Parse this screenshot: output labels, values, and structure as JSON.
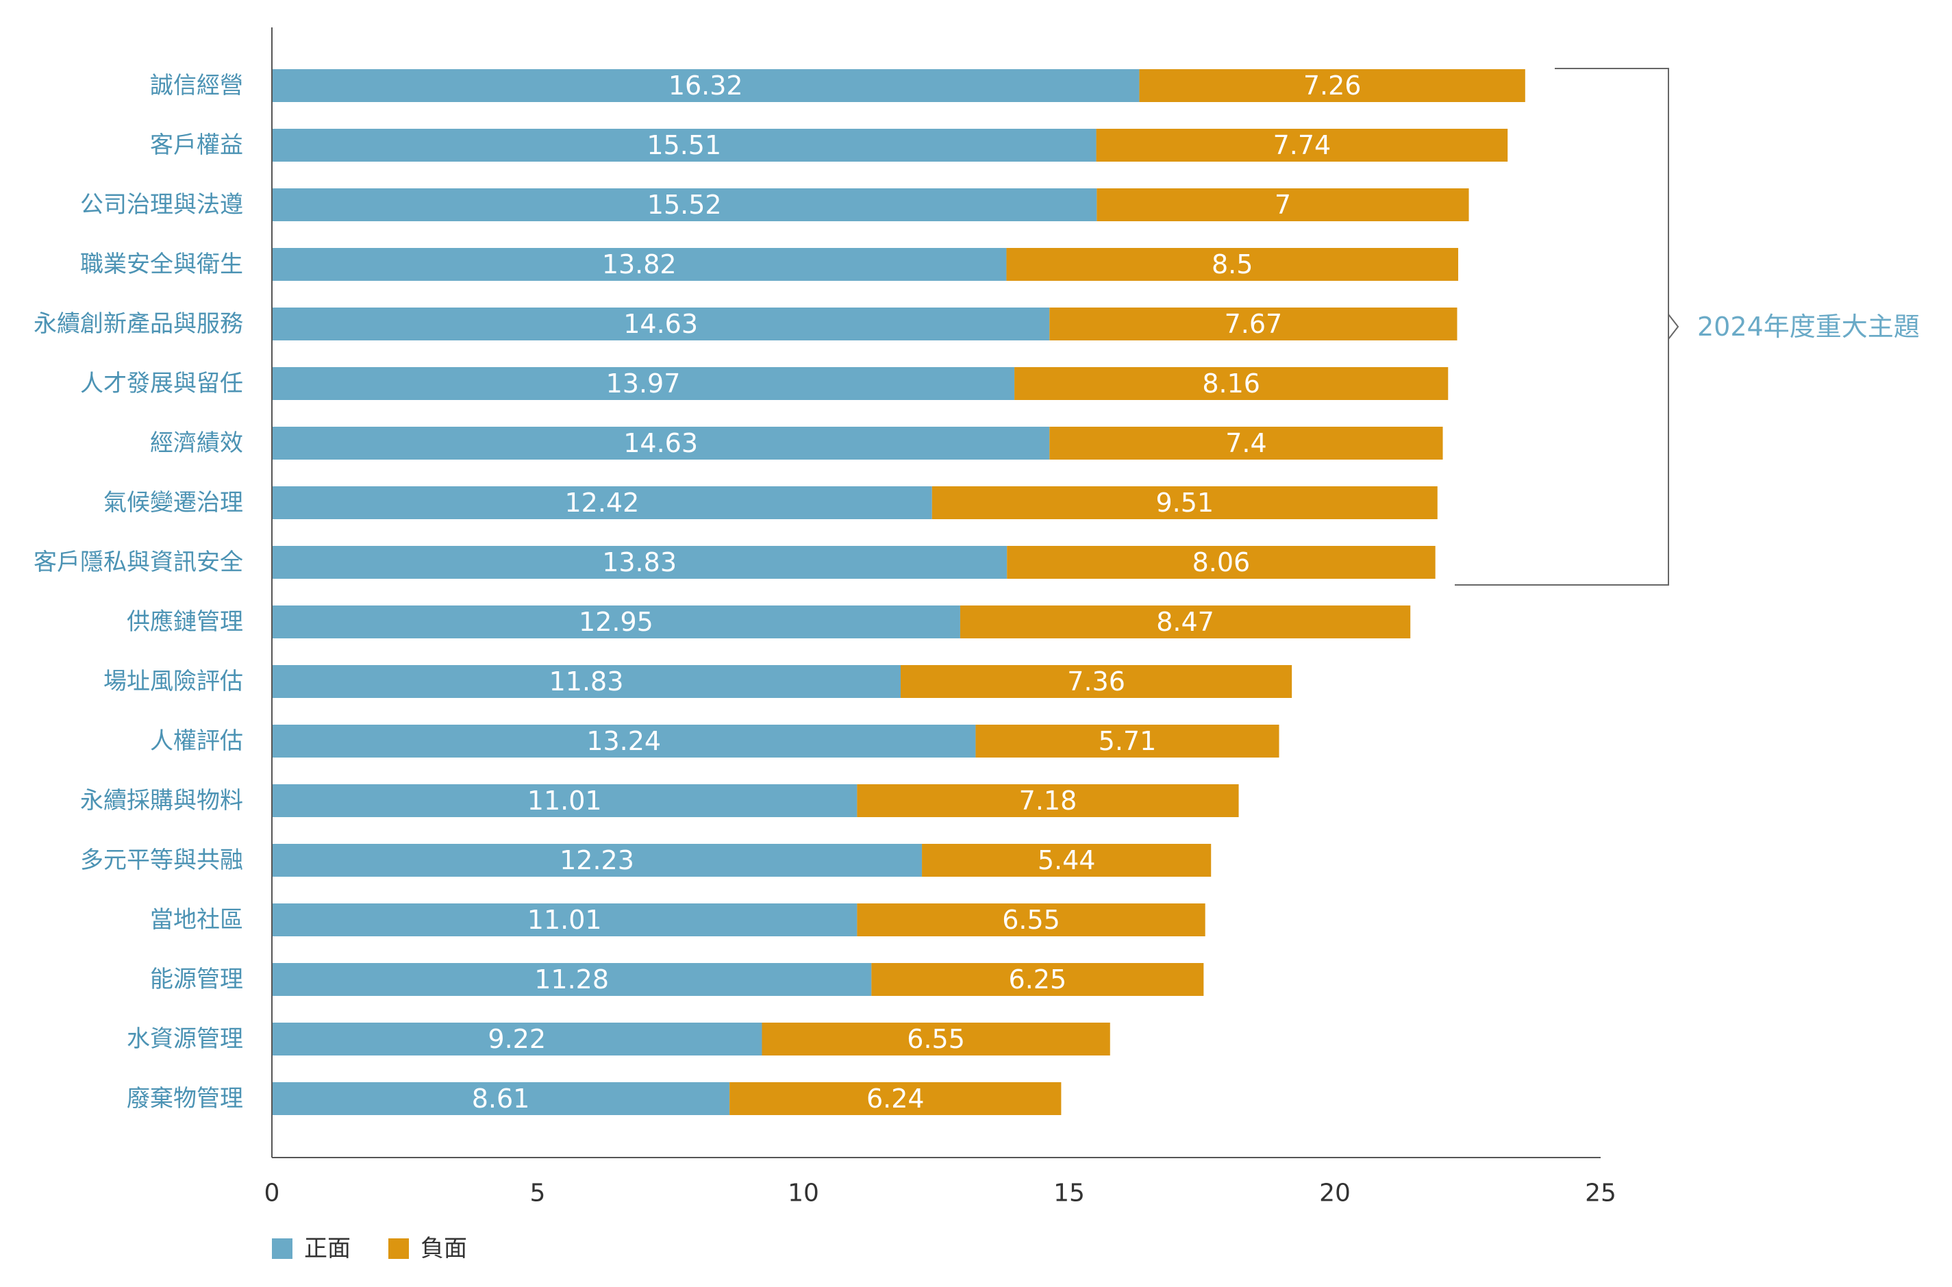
{
  "chart_data": {
    "type": "bar",
    "orientation": "horizontal",
    "stacked": true,
    "title": "",
    "xlabel": "",
    "ylabel": "",
    "xlim": [
      0,
      25
    ],
    "xticks": [
      0,
      5,
      10,
      15,
      20,
      25
    ],
    "grid": false,
    "legend_position": "bottom-left",
    "categories": [
      "誠信經營",
      "客戶權益",
      "公司治理與法遵",
      "職業安全與衛生",
      "永續創新產品與服務",
      "人才發展與留任",
      "經濟績效",
      "氣候變遷治理",
      "客戶隱私與資訊安全",
      "供應鏈管理",
      "場址風險評估",
      "人權評估",
      "永續採購與物料",
      "多元平等與共融",
      "當地社區",
      "能源管理",
      "水資源管理",
      "廢棄物管理"
    ],
    "series": [
      {
        "name": "正面",
        "color": "#6aaac7",
        "values": [
          16.32,
          15.51,
          15.52,
          13.82,
          14.63,
          13.97,
          14.63,
          12.42,
          13.83,
          12.95,
          11.83,
          13.24,
          11.01,
          12.23,
          11.01,
          11.28,
          9.22,
          8.61
        ]
      },
      {
        "name": "負面",
        "color": "#dc9510",
        "values": [
          7.26,
          7.74,
          7,
          8.5,
          7.67,
          8.16,
          7.4,
          9.51,
          8.06,
          8.47,
          7.36,
          5.71,
          7.18,
          5.44,
          6.55,
          6.25,
          6.55,
          6.24
        ]
      }
    ],
    "annotation": {
      "label": "2024年度重大主題",
      "first_category": "誠信經營",
      "last_category": "客戶隱私與資訊安全"
    },
    "colors": {
      "category_label": "#4c93b4",
      "bar_label": "#ffffff",
      "axis": "#555555",
      "tick_label": "#333333",
      "annotation": "#6aaac7",
      "bracket": "#666666"
    }
  }
}
